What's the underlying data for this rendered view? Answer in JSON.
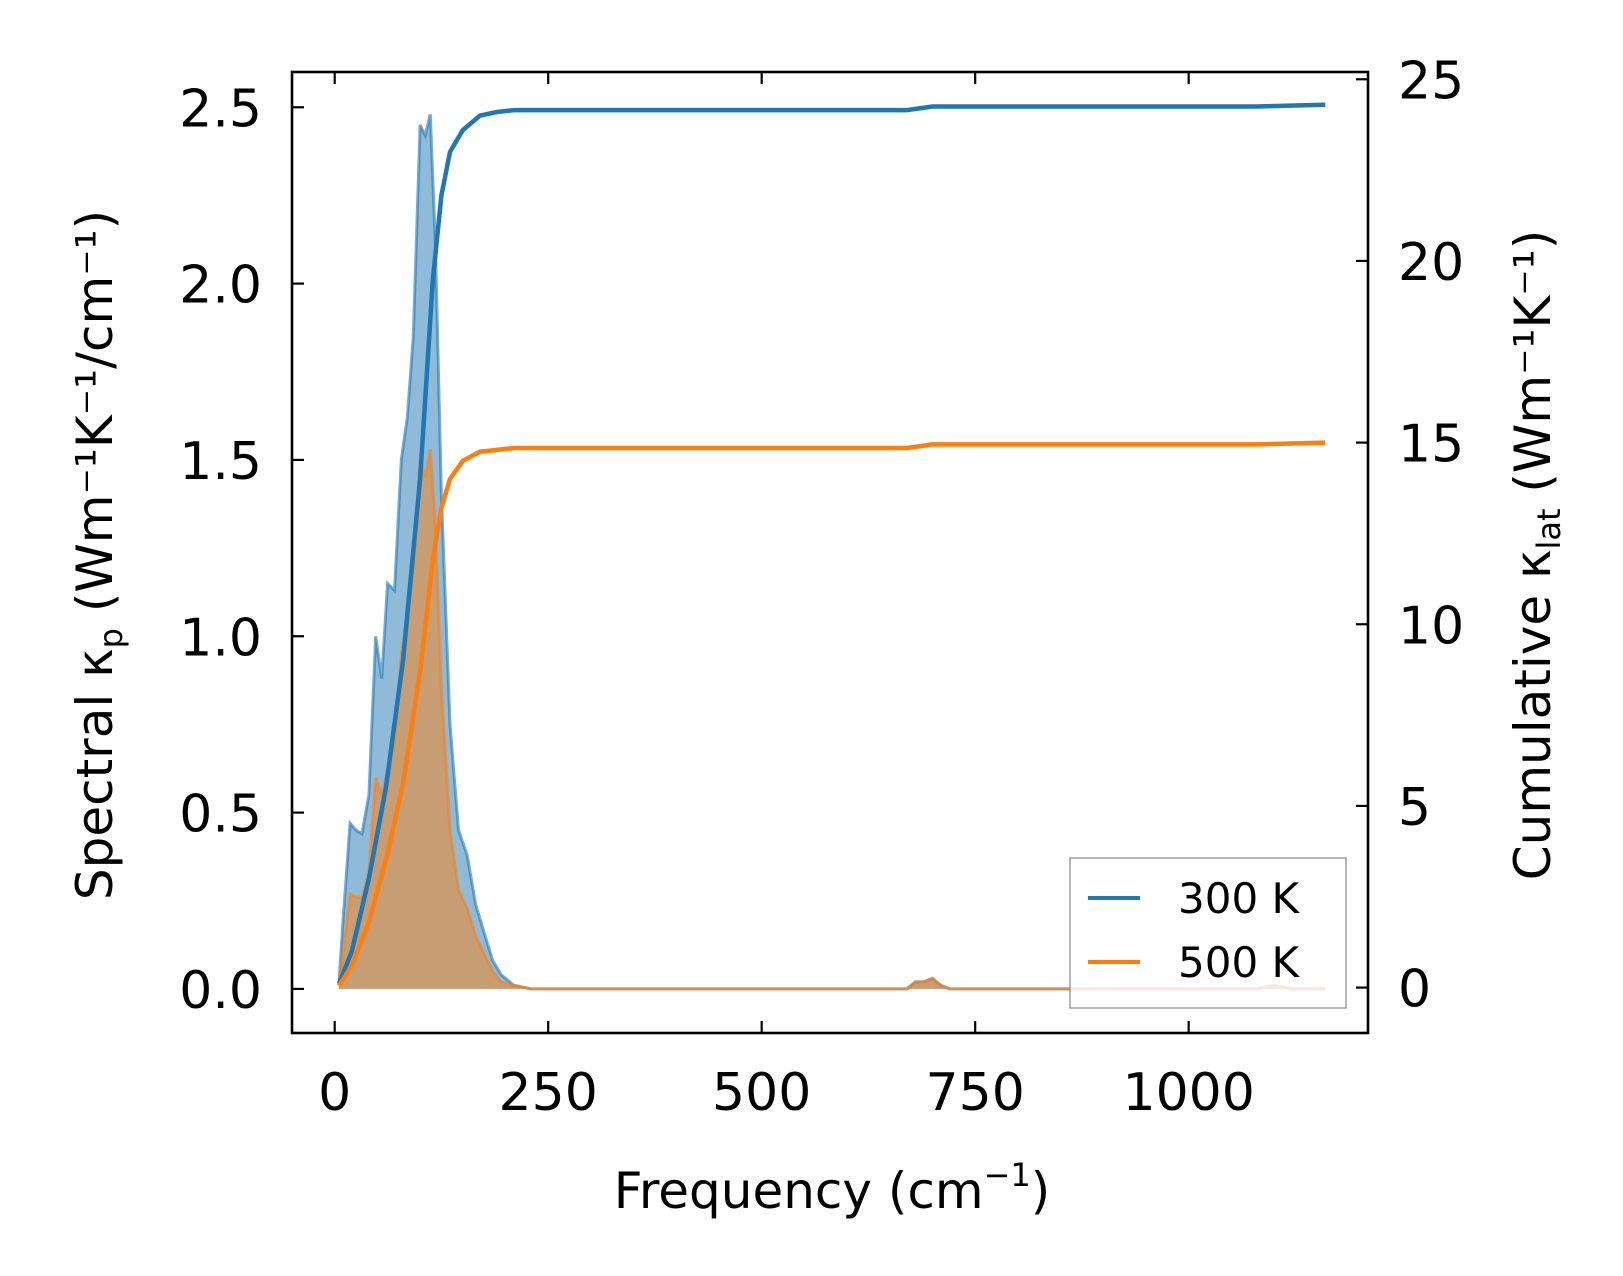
{
  "chart_data": {
    "type": "line",
    "xlabel": {
      "main": "Frequency (cm",
      "sup": "−1",
      "tail": ")"
    },
    "ylabel_left": "Spectral κ",
    "ylabel_left_sub": "p",
    "ylabel_left_units": " (Wm⁻¹K⁻¹/cm⁻¹)",
    "ylabel_right": "Cumulative κ",
    "ylabel_right_sub": "lat",
    "ylabel_right_units": " (Wm⁻¹K⁻¹)",
    "xlim": [
      -50,
      1210
    ],
    "ylim_left": [
      -0.125,
      2.6
    ],
    "ylim_right": [
      -1.25,
      25.2
    ],
    "xticks": [
      0,
      250,
      500,
      750,
      1000
    ],
    "yticks_left": [
      0.0,
      0.5,
      1.0,
      1.5,
      2.0,
      2.5
    ],
    "yticks_left_labels": [
      "0.0",
      "0.5",
      "1.0",
      "1.5",
      "2.0",
      "2.5"
    ],
    "yticks_right": [
      0,
      5,
      10,
      15,
      20,
      25
    ],
    "legend_position": "lower-right",
    "colors": {
      "300K": "#1f77b4",
      "500K": "#ff7f0e"
    },
    "series": [
      {
        "name": "300 K",
        "color": "#1f77b4",
        "spectral": {
          "x": [
            5,
            10,
            18,
            25,
            32,
            40,
            48,
            55,
            62,
            70,
            78,
            85,
            92,
            100,
            106,
            112,
            118,
            125,
            135,
            145,
            155,
            165,
            175,
            185,
            195,
            210,
            230,
            400,
            600,
            670,
            680,
            690,
            700,
            710,
            720,
            1000,
            1080,
            1100,
            1120,
            1160
          ],
          "y": [
            0.02,
            0.2,
            0.47,
            0.45,
            0.44,
            0.55,
            1.0,
            0.88,
            1.15,
            1.13,
            1.5,
            1.62,
            1.85,
            2.45,
            2.42,
            2.48,
            2.1,
            1.4,
            0.75,
            0.45,
            0.38,
            0.24,
            0.16,
            0.08,
            0.04,
            0.01,
            0.0,
            0.0,
            0.0,
            0.0,
            0.02,
            0.02,
            0.03,
            0.01,
            0.0,
            0.0,
            0.0,
            0.01,
            0.0,
            0.0
          ]
        },
        "cumulative": {
          "x": [
            5,
            20,
            40,
            60,
            80,
            100,
            115,
            125,
            135,
            150,
            170,
            190,
            210,
            250,
            400,
            600,
            670,
            700,
            720,
            1000,
            1080,
            1160
          ],
          "y": [
            0.1,
            1.0,
            3.0,
            5.5,
            9.0,
            14.0,
            19.5,
            21.8,
            23.0,
            23.6,
            24.0,
            24.1,
            24.15,
            24.15,
            24.15,
            24.15,
            24.15,
            24.25,
            24.25,
            24.25,
            24.25,
            24.3
          ]
        }
      },
      {
        "name": "500 K",
        "color": "#ff7f0e",
        "spectral": {
          "x": [
            5,
            10,
            18,
            25,
            32,
            40,
            48,
            55,
            62,
            70,
            78,
            85,
            92,
            100,
            106,
            112,
            118,
            125,
            135,
            145,
            155,
            165,
            175,
            185,
            195,
            210,
            230,
            400,
            600,
            670,
            680,
            690,
            700,
            710,
            720,
            1000,
            1080,
            1100,
            1120,
            1160
          ],
          "y": [
            0.02,
            0.1,
            0.27,
            0.26,
            0.26,
            0.33,
            0.6,
            0.55,
            0.62,
            0.7,
            0.95,
            1.05,
            1.2,
            1.5,
            1.45,
            1.53,
            1.3,
            0.85,
            0.45,
            0.28,
            0.23,
            0.15,
            0.1,
            0.05,
            0.02,
            0.01,
            0.0,
            0.0,
            0.0,
            0.0,
            0.02,
            0.02,
            0.03,
            0.01,
            0.0,
            0.0,
            0.0,
            0.01,
            0.0,
            0.0
          ]
        },
        "cumulative": {
          "x": [
            5,
            20,
            40,
            60,
            80,
            100,
            115,
            125,
            135,
            150,
            170,
            190,
            210,
            250,
            400,
            600,
            670,
            700,
            720,
            1000,
            1080,
            1160
          ],
          "y": [
            0.05,
            0.6,
            1.8,
            3.5,
            5.6,
            8.7,
            11.8,
            13.2,
            14.0,
            14.5,
            14.75,
            14.8,
            14.85,
            14.85,
            14.85,
            14.85,
            14.85,
            14.95,
            14.95,
            14.95,
            14.95,
            15.0
          ]
        }
      }
    ]
  }
}
